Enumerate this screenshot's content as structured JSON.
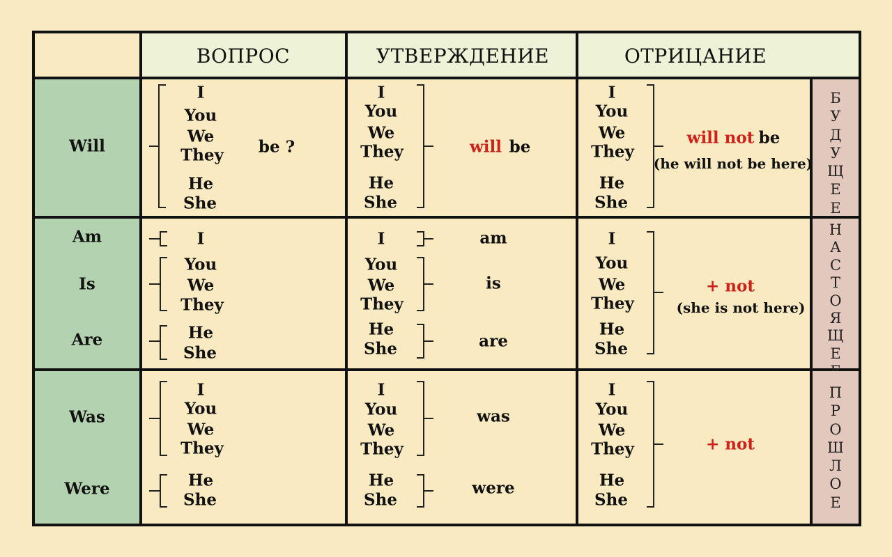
{
  "headers": {
    "question": "ВОПРОС",
    "affirmative": "УТВЕРЖДЕНИЕ",
    "negative": "ОТРИЦАНИЕ"
  },
  "pronouns": {
    "i": "I",
    "you": "You",
    "we": "We",
    "they": "They",
    "he": "He",
    "she": "She"
  },
  "future": {
    "verb": "Will",
    "question_end": "be ?",
    "affirm_aux": "will",
    "affirm_be": "be",
    "neg_aux": "will not",
    "neg_be": "be",
    "neg_example": "(he will not be here)",
    "tense_label": [
      "Б",
      "У",
      "Д",
      "У",
      "Щ",
      "Е",
      "Е"
    ]
  },
  "present": {
    "verbs": [
      "Am",
      "Is",
      "Are"
    ],
    "affirm": [
      "am",
      "is",
      "are"
    ],
    "neg": "+ not",
    "neg_example": "(she is not here)",
    "tense_label": [
      "Н",
      "А",
      "С",
      "Т",
      "О",
      "Я",
      "Щ",
      "Е",
      "Е"
    ]
  },
  "past": {
    "verbs": [
      "Was",
      "Were"
    ],
    "affirm": [
      "was",
      "were"
    ],
    "neg": "+ not",
    "tense_label": [
      "П",
      "Р",
      "О",
      "Ш",
      "Л",
      "О",
      "Е"
    ]
  },
  "colors": {
    "background": "#faeac2",
    "header": "#eef2d6",
    "verb_column": "#b3d2b0",
    "tense_column": "#e3c8be",
    "accent_red": "#d0201a"
  }
}
